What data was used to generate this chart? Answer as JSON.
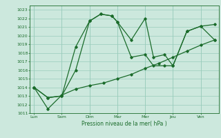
{
  "background_color": "#cce8dd",
  "grid_color": "#99ccbb",
  "plot_bg": "#cce8dd",
  "line_color": "#1a6b2a",
  "xlabel": "Pression niveau de la mer( hPa )",
  "xtick_labels": [
    "Lun",
    "Sam",
    "Dim",
    "Mar",
    "Mer",
    "Jeu",
    "Ven"
  ],
  "ylim": [
    1011,
    1023.5
  ],
  "ytick_vals": [
    1011,
    1012,
    1013,
    1014,
    1015,
    1016,
    1017,
    1018,
    1019,
    1020,
    1021,
    1022,
    1023
  ],
  "line1_x": [
    0.0,
    0.5,
    1.0,
    1.5,
    2.0,
    2.4,
    2.8,
    3.0,
    3.5,
    4.0,
    4.3,
    4.7,
    5.0,
    5.5,
    6.0,
    6.5
  ],
  "line1_y": [
    1014.0,
    1012.8,
    1013.0,
    1016.0,
    1021.7,
    1022.5,
    1022.3,
    1021.6,
    1019.5,
    1022.0,
    1017.5,
    1017.8,
    1016.5,
    1020.5,
    1021.1,
    1021.3
  ],
  "line2_x": [
    0.0,
    0.5,
    1.0,
    1.5,
    2.0,
    2.4,
    2.8,
    3.0,
    3.5,
    4.0,
    4.3,
    4.7,
    5.0,
    5.5,
    6.0,
    6.5
  ],
  "line2_y": [
    1014.0,
    1012.8,
    1013.0,
    1018.7,
    1021.7,
    1022.5,
    1022.3,
    1021.6,
    1017.5,
    1017.8,
    1016.5,
    1016.5,
    1016.5,
    1020.5,
    1021.1,
    1019.5
  ],
  "line3_x": [
    0.0,
    0.5,
    1.0,
    1.5,
    2.0,
    2.5,
    3.0,
    3.5,
    4.0,
    4.5,
    5.0,
    5.5,
    6.0,
    6.5
  ],
  "line3_y": [
    1014.0,
    1011.5,
    1013.1,
    1013.8,
    1014.2,
    1014.5,
    1015.0,
    1015.5,
    1016.2,
    1016.8,
    1017.5,
    1018.2,
    1018.9,
    1019.5
  ],
  "figsize": [
    3.2,
    2.0
  ],
  "dpi": 100
}
